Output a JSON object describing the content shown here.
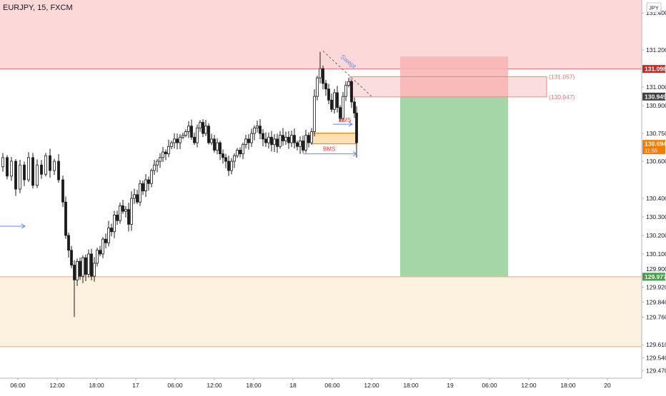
{
  "header": {
    "symbol_title": "EURJPY, 15, FXCM",
    "currency": "JPY"
  },
  "colors": {
    "up_candle": "#1a1a1a",
    "down_candle": "#1a1a1a",
    "supply_zone_fill": "#fdd8d8",
    "supply_zone_line": "#ef6f6f",
    "demand_zone_fill": "#fdf2e0",
    "demand_zone_line": "#f5a94a",
    "target_fill": "#a5d6a7",
    "stop_fill": "#f8b4b4",
    "current_price_tag": "#f57c00",
    "stop_tag": "#c62828",
    "target_tag": "#43a047",
    "entry_tag": "#424242",
    "annotation_blue": "#5b8def",
    "annotation_red": "#e53935"
  },
  "chart_data": {
    "type": "candlestick",
    "title": "EURJPY, 15, FXCM",
    "unit": "JPY",
    "x_ticks": [
      "06:00",
      "12:00",
      "18:00",
      "17",
      "06:00",
      "12:00",
      "18:00",
      "18",
      "06:00",
      "12:00",
      "18:00",
      "19",
      "06:00",
      "12:00",
      "18:00",
      "20"
    ],
    "y_ticks": [
      131.4,
      131.2,
      131.0,
      130.9,
      130.75,
      130.6,
      130.4,
      130.3,
      130.2,
      130.1,
      129.92,
      129.84,
      129.76,
      129.61,
      129.54,
      129.47
    ],
    "y_tick_labels": [
      "131.400",
      "131.200",
      "131.000",
      "130.900",
      "130.750",
      "130.600",
      "130.400",
      "130.300",
      "130.200",
      "130.100",
      "129.920",
      "129.840",
      "129.760",
      "129.610",
      "129.540",
      "129.470"
    ],
    "ylim": [
      129.43,
      131.47
    ],
    "price_path": [
      [
        0,
        130.57
      ],
      [
        6,
        130.62
      ],
      [
        12,
        130.52
      ],
      [
        18,
        130.6
      ],
      [
        24,
        130.45
      ],
      [
        30,
        130.58
      ],
      [
        36,
        130.5
      ],
      [
        42,
        130.62
      ],
      [
        48,
        130.47
      ],
      [
        54,
        130.58
      ],
      [
        60,
        130.53
      ],
      [
        66,
        130.63
      ],
      [
        72,
        130.55
      ],
      [
        78,
        130.6
      ],
      [
        84,
        130.5
      ],
      [
        90,
        130.38
      ],
      [
        94,
        130.2
      ],
      [
        98,
        130.12
      ],
      [
        102,
        130.04
      ],
      [
        106,
        129.96
      ],
      [
        110,
        130.06
      ],
      [
        114,
        129.98
      ],
      [
        118,
        130.08
      ],
      [
        122,
        129.99
      ],
      [
        126,
        130.1
      ],
      [
        130,
        129.98
      ],
      [
        134,
        130.05
      ],
      [
        138,
        130.12
      ],
      [
        142,
        130.1
      ],
      [
        146,
        130.18
      ],
      [
        150,
        130.16
      ],
      [
        154,
        130.24
      ],
      [
        158,
        130.22
      ],
      [
        162,
        130.31
      ],
      [
        166,
        130.28
      ],
      [
        170,
        130.36
      ],
      [
        174,
        130.33
      ],
      [
        178,
        130.34
      ],
      [
        182,
        130.26
      ],
      [
        186,
        130.4
      ],
      [
        190,
        130.42
      ],
      [
        194,
        130.38
      ],
      [
        198,
        130.48
      ],
      [
        202,
        130.44
      ],
      [
        206,
        130.5
      ],
      [
        210,
        130.48
      ],
      [
        214,
        130.55
      ],
      [
        218,
        130.58
      ],
      [
        222,
        130.6
      ],
      [
        226,
        130.62
      ],
      [
        230,
        130.65
      ],
      [
        234,
        130.64
      ],
      [
        238,
        130.68
      ],
      [
        242,
        130.7
      ],
      [
        246,
        130.72
      ],
      [
        250,
        130.7
      ],
      [
        254,
        130.73
      ],
      [
        258,
        130.74
      ],
      [
        262,
        130.76
      ],
      [
        266,
        130.79
      ],
      [
        270,
        130.73
      ],
      [
        274,
        130.7
      ],
      [
        278,
        130.78
      ],
      [
        282,
        130.81
      ],
      [
        286,
        130.75
      ],
      [
        290,
        130.79
      ],
      [
        294,
        130.7
      ],
      [
        298,
        130.72
      ],
      [
        302,
        130.66
      ],
      [
        306,
        130.7
      ],
      [
        310,
        130.64
      ],
      [
        314,
        130.62
      ],
      [
        318,
        130.6
      ],
      [
        322,
        130.55
      ],
      [
        326,
        130.6
      ],
      [
        330,
        130.63
      ],
      [
        334,
        130.66
      ],
      [
        338,
        130.64
      ],
      [
        342,
        130.69
      ],
      [
        346,
        130.72
      ],
      [
        350,
        130.7
      ],
      [
        354,
        130.75
      ],
      [
        358,
        130.78
      ],
      [
        362,
        130.79
      ],
      [
        366,
        130.75
      ],
      [
        370,
        130.72
      ],
      [
        374,
        130.7
      ],
      [
        378,
        130.73
      ],
      [
        382,
        130.69
      ],
      [
        386,
        130.72
      ],
      [
        390,
        130.68
      ],
      [
        394,
        130.74
      ],
      [
        398,
        130.71
      ],
      [
        402,
        130.73
      ],
      [
        406,
        130.7
      ],
      [
        410,
        130.74
      ],
      [
        414,
        130.7
      ],
      [
        418,
        130.68
      ],
      [
        422,
        130.71
      ],
      [
        426,
        130.66
      ],
      [
        430,
        130.74
      ],
      [
        434,
        130.7
      ],
      [
        438,
        130.76
      ],
      [
        442,
        130.95
      ],
      [
        446,
        131.05
      ],
      [
        450,
        131.1
      ],
      [
        454,
        131.02
      ],
      [
        458,
        130.99
      ],
      [
        462,
        130.93
      ],
      [
        466,
        130.88
      ],
      [
        470,
        130.97
      ],
      [
        474,
        130.89
      ],
      [
        478,
        130.83
      ],
      [
        482,
        130.95
      ],
      [
        486,
        131.01
      ],
      [
        490,
        131.03
      ],
      [
        494,
        130.92
      ],
      [
        498,
        130.86
      ],
      [
        501,
        130.7
      ]
    ],
    "supply_zone": {
      "from": 131.098,
      "to": 131.47
    },
    "demand_zone": {
      "from": 129.6,
      "to": 129.977
    },
    "position": {
      "type": "long",
      "entry": 130.949,
      "stop": 131.098,
      "target": 129.977
    },
    "levels": {
      "upper": 131.057,
      "lower": 130.947,
      "upper_label": "(131.057)",
      "lower_label": "(130.947)"
    },
    "bms_box": {
      "top": 130.752,
      "bottom": 130.694
    },
    "annotations": [
      {
        "text": "Swept",
        "label": "swept-label"
      },
      {
        "text": "BMS",
        "label": "bms-upper"
      },
      {
        "text": "BMS",
        "label": "bms-lower"
      }
    ],
    "price_tags": {
      "stop": "131.098",
      "entry": "130.949",
      "current": "130.694",
      "countdown": "11:55",
      "target": "129.977",
      "cut": "129.900"
    },
    "swept_wick_high": 131.19,
    "low_wick": 129.76,
    "grid": false,
    "legend": "none"
  }
}
